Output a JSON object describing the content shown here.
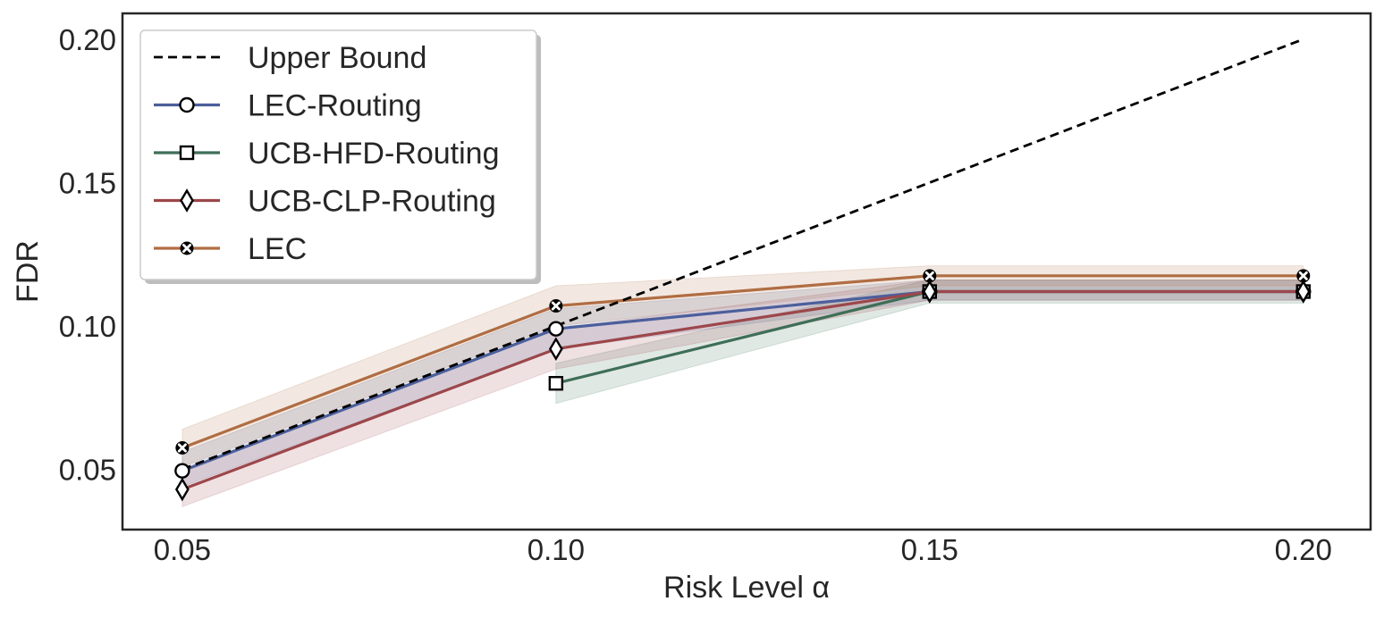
{
  "chart_data": {
    "type": "line",
    "title": "",
    "xlabel": "Risk Level α",
    "ylabel": "FDR",
    "x": [
      0.05,
      0.1,
      0.15,
      0.2
    ],
    "x_ticks": [
      "0.05",
      "0.10",
      "0.15",
      "0.20"
    ],
    "y_ticks": [
      "0.05",
      "0.10",
      "0.15",
      "0.20"
    ],
    "y_tick_values": [
      0.05,
      0.1,
      0.15,
      0.2
    ],
    "xlim": [
      0.042,
      0.209
    ],
    "ylim": [
      0.029,
      0.209
    ],
    "grid": false,
    "legend_position": "top-left",
    "series": [
      {
        "name": "Upper Bound",
        "color": "#000000",
        "style": "dashed",
        "marker": "none",
        "x": [
          0.05,
          0.2
        ],
        "values": [
          0.05,
          0.2
        ]
      },
      {
        "name": "LEC-Routing",
        "color": "#4c5f9c",
        "style": "solid",
        "marker": "circle",
        "x": [
          0.05,
          0.1,
          0.15,
          0.2
        ],
        "values": [
          0.0495,
          0.099,
          0.112,
          0.112
        ],
        "band_lower": [
          0.044,
          0.092,
          0.109,
          0.109
        ],
        "band_upper": [
          0.056,
          0.106,
          0.116,
          0.116
        ]
      },
      {
        "name": "UCB-HFD-Routing",
        "color": "#3f6e57",
        "style": "solid",
        "marker": "square",
        "x": [
          0.1,
          0.15,
          0.2
        ],
        "values": [
          0.08,
          0.112,
          0.112
        ],
        "band_lower": [
          0.073,
          0.108,
          0.108
        ],
        "band_upper": [
          0.087,
          0.116,
          0.116
        ]
      },
      {
        "name": "UCB-CLP-Routing",
        "color": "#9c474b",
        "style": "solid",
        "marker": "diamond",
        "x": [
          0.05,
          0.1,
          0.15,
          0.2
        ],
        "values": [
          0.043,
          0.092,
          0.112,
          0.112
        ],
        "band_lower": [
          0.037,
          0.085,
          0.109,
          0.109
        ],
        "band_upper": [
          0.049,
          0.099,
          0.116,
          0.116
        ]
      },
      {
        "name": "LEC",
        "color": "#b06d43",
        "style": "solid",
        "marker": "x-filled",
        "x": [
          0.05,
          0.1,
          0.15,
          0.2
        ],
        "values": [
          0.0575,
          0.107,
          0.1175,
          0.1175
        ],
        "band_lower": [
          0.051,
          0.1,
          0.114,
          0.114
        ],
        "band_upper": [
          0.064,
          0.114,
          0.121,
          0.121
        ]
      }
    ]
  }
}
